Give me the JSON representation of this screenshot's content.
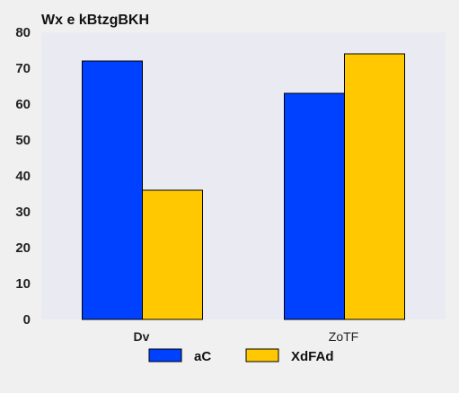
{
  "chart_data": {
    "type": "bar",
    "title": "Wx e kBtzgBKH",
    "xlabel": "",
    "ylabel": "",
    "categories": [
      "Dv",
      "ZoTF"
    ],
    "series": [
      {
        "name": "aC",
        "values": [
          72,
          63
        ],
        "color": "#0040ff"
      },
      {
        "name": "XdFAd",
        "values": [
          36,
          74
        ],
        "color": "#ffc800"
      }
    ],
    "ylim": [
      0,
      80
    ],
    "yticks": [
      0,
      10,
      20,
      30,
      40,
      50,
      60,
      70,
      80
    ],
    "grid": false,
    "legend_position": "bottom-center",
    "plot_background": "#eaeaf2"
  }
}
